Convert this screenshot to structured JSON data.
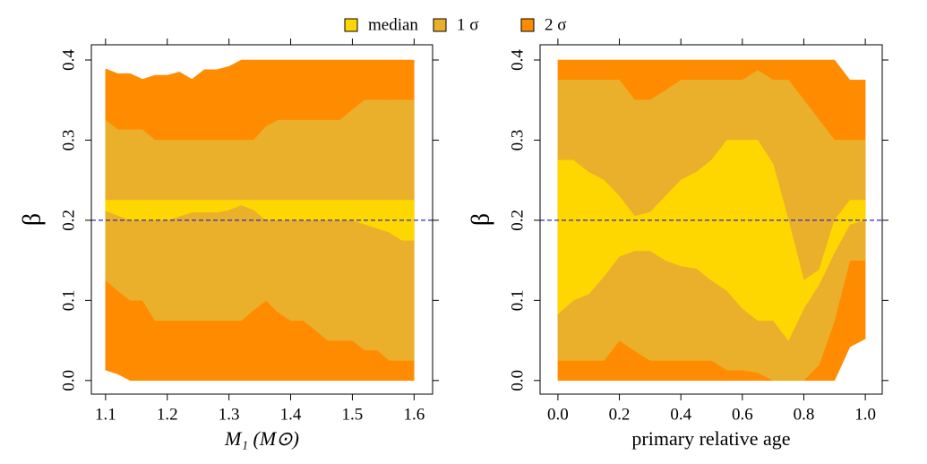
{
  "chart_data": [
    {
      "type": "band",
      "xlabel": "M₁ (M⊙)",
      "ylabel": "β",
      "xlim": [
        1.077,
        1.63
      ],
      "ylim": [
        -0.017,
        0.419
      ],
      "xticks": [
        1.1,
        1.2,
        1.3,
        1.4,
        1.5,
        1.6
      ],
      "yticks": [
        {
          "value": 0,
          "label": "0.0"
        },
        0.1,
        0.2,
        0.3,
        0.4
      ],
      "hline": 0.2,
      "hline_color": "#2b2bb8",
      "x": [
        1.1,
        1.12,
        1.14,
        1.16,
        1.18,
        1.2,
        1.22,
        1.24,
        1.26,
        1.28,
        1.3,
        1.32,
        1.34,
        1.36,
        1.38,
        1.4,
        1.42,
        1.44,
        1.46,
        1.48,
        1.5,
        1.52,
        1.54,
        1.56,
        1.58,
        1.6
      ],
      "series": [
        {
          "name": "2 σ",
          "color": "#ff8c00",
          "low": [
            0.013,
            0.008,
            0,
            0,
            0,
            0,
            0,
            0,
            0,
            0,
            0,
            0,
            0,
            0,
            0,
            0,
            0,
            0,
            0,
            0,
            0,
            0,
            0,
            0,
            0,
            0
          ],
          "high": [
            0.389,
            0.383,
            0.383,
            0.376,
            0.381,
            0.381,
            0.385,
            0.376,
            0.388,
            0.388,
            0.392,
            0.4,
            0.4,
            0.4,
            0.4,
            0.4,
            0.4,
            0.4,
            0.4,
            0.4,
            0.4,
            0.4,
            0.4,
            0.4,
            0.4,
            0.4
          ]
        },
        {
          "name": "1 σ",
          "color": "#ebb02b",
          "low": [
            0.125,
            0.112,
            0.1,
            0.1,
            0.075,
            0.075,
            0.075,
            0.075,
            0.075,
            0.075,
            0.075,
            0.075,
            0.088,
            0.1,
            0.085,
            0.075,
            0.075,
            0.063,
            0.05,
            0.05,
            0.05,
            0.038,
            0.038,
            0.025,
            0.025,
            0.025
          ],
          "high": [
            0.325,
            0.313,
            0.313,
            0.313,
            0.3,
            0.3,
            0.3,
            0.3,
            0.3,
            0.3,
            0.3,
            0.3,
            0.3,
            0.317,
            0.325,
            0.325,
            0.325,
            0.325,
            0.325,
            0.325,
            0.338,
            0.35,
            0.35,
            0.35,
            0.35,
            0.35
          ]
        },
        {
          "name": "median",
          "color": "#ffd700",
          "low": [
            0.212,
            0.206,
            0.2,
            0.2,
            0.2,
            0.2,
            0.205,
            0.21,
            0.21,
            0.21,
            0.213,
            0.219,
            0.213,
            0.2,
            0.2,
            0.2,
            0.2,
            0.2,
            0.2,
            0.2,
            0.2,
            0.195,
            0.19,
            0.185,
            0.175,
            0.175
          ],
          "high": [
            0.225,
            0.225,
            0.225,
            0.225,
            0.225,
            0.225,
            0.225,
            0.225,
            0.225,
            0.225,
            0.225,
            0.225,
            0.225,
            0.225,
            0.225,
            0.225,
            0.225,
            0.225,
            0.225,
            0.225,
            0.225,
            0.225,
            0.225,
            0.225,
            0.225,
            0.225
          ]
        }
      ]
    },
    {
      "type": "band",
      "xlabel": "primary relative age",
      "ylabel": "β",
      "xlim": [
        -0.058,
        1.055
      ],
      "ylim": [
        -0.017,
        0.419
      ],
      "xticks": [
        {
          "value": 0,
          "label": "0.0"
        },
        0.2,
        0.4,
        0.6,
        0.8,
        {
          "value": 1,
          "label": "1.0"
        }
      ],
      "yticks": [
        {
          "value": 0,
          "label": "0.0"
        },
        0.1,
        0.2,
        0.3,
        0.4
      ],
      "hline": 0.2,
      "hline_color": "#2b2bb8",
      "x": [
        0,
        0.05,
        0.1,
        0.15,
        0.2,
        0.25,
        0.3,
        0.35,
        0.4,
        0.45,
        0.5,
        0.55,
        0.6,
        0.65,
        0.7,
        0.75,
        0.8,
        0.85,
        0.9,
        0.95,
        1
      ],
      "series": [
        {
          "low": [
            0,
            0,
            0,
            0,
            0,
            0,
            0,
            0,
            0,
            0,
            0,
            0,
            0,
            0,
            0,
            0,
            0,
            0,
            0,
            0.042,
            0.052
          ],
          "high": [
            0.4,
            0.4,
            0.4,
            0.4,
            0.4,
            0.4,
            0.4,
            0.4,
            0.4,
            0.4,
            0.4,
            0.4,
            0.4,
            0.4,
            0.4,
            0.4,
            0.4,
            0.4,
            0.4,
            0.375,
            0.375
          ]
        },
        {
          "low": [
            0.025,
            0.025,
            0.025,
            0.025,
            0.05,
            0.037,
            0.025,
            0.025,
            0.025,
            0.025,
            0.025,
            0.013,
            0.013,
            0.01,
            0,
            0,
            0,
            0.02,
            0.075,
            0.15,
            0.15
          ],
          "high": [
            0.375,
            0.375,
            0.375,
            0.375,
            0.375,
            0.35,
            0.35,
            0.362,
            0.375,
            0.375,
            0.375,
            0.375,
            0.375,
            0.387,
            0.375,
            0.375,
            0.35,
            0.325,
            0.3,
            0.3,
            0.3
          ]
        },
        {
          "low": [
            0.083,
            0.1,
            0.108,
            0.13,
            0.155,
            0.162,
            0.162,
            0.15,
            0.143,
            0.14,
            0.125,
            0.112,
            0.09,
            0.075,
            0.075,
            0.05,
            0.09,
            0.12,
            0.16,
            0.195,
            0.2
          ],
          "high": [
            0.275,
            0.275,
            0.26,
            0.25,
            0.23,
            0.205,
            0.21,
            0.23,
            0.25,
            0.26,
            0.275,
            0.3,
            0.3,
            0.3,
            0.27,
            0.2,
            0.125,
            0.138,
            0.2,
            0.225,
            0.225
          ]
        }
      ]
    }
  ]
}
